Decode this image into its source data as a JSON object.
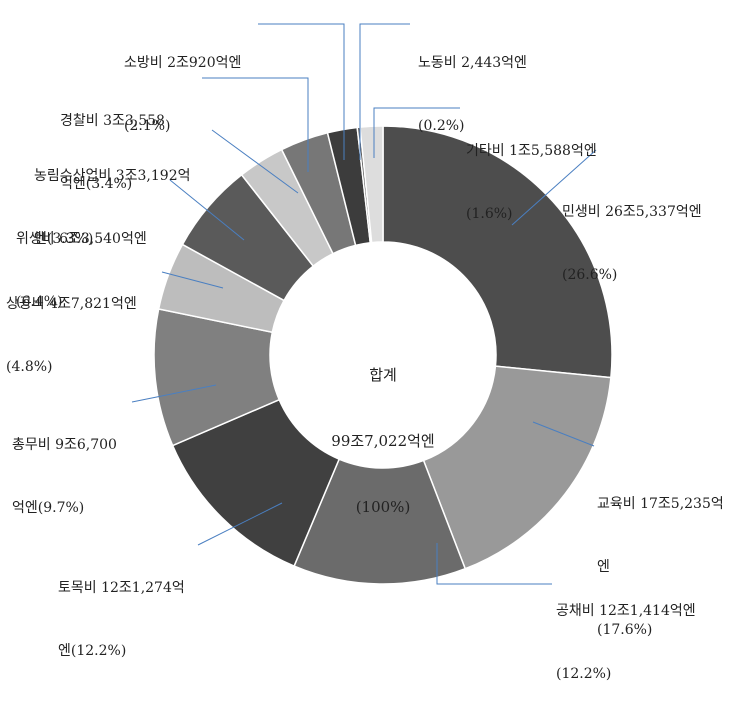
{
  "chart_data": {
    "type": "pie",
    "donut": true,
    "center_label": {
      "line1": "합계",
      "line2": "99조7,022억엔",
      "line3": "(100%)"
    },
    "slices": [
      {
        "name": "민생비",
        "amount": "26조5,337억엔",
        "percent": 26.6,
        "color": "#4d4d4d",
        "label_lines": [
          "민생비 26조5,337억엔",
          "(26.6%)"
        ]
      },
      {
        "name": "교육비",
        "amount": "17조5,235억엔",
        "percent": 17.6,
        "color": "#999999",
        "label_lines": [
          "교육비 17조5,235억",
          "엔",
          "(17.6%)"
        ]
      },
      {
        "name": "공채비",
        "amount": "12조1,414억엔",
        "percent": 12.2,
        "color": "#6b6b6b",
        "label_lines": [
          "공채비 12조1,414억엔",
          "(12.2%)"
        ]
      },
      {
        "name": "토목비",
        "amount": "12조1,274억엔",
        "percent": 12.2,
        "color": "#404040",
        "label_lines": [
          "토목비 12조1,274억",
          "엔(12.2%)"
        ]
      },
      {
        "name": "총무비",
        "amount": "9조6,700억엔",
        "percent": 9.7,
        "color": "#808080",
        "label_lines": [
          "총무비 9조6,700",
          "억엔(9.7%)"
        ]
      },
      {
        "name": "상공비",
        "amount": "4조7,821억엔",
        "percent": 4.8,
        "color": "#bdbdbd",
        "label_lines": [
          "상공비 4조7,821억엔",
          "(4.8%)"
        ]
      },
      {
        "name": "위생비",
        "amount": "6조3,540억엔",
        "percent": 6.4,
        "color": "#5a5a5a",
        "label_lines": [
          "위생비 6조3,540억엔",
          "(6.4%)"
        ]
      },
      {
        "name": "농림수산업비",
        "amount": "3조3,192억엔",
        "percent": 3.3,
        "color": "#c8c8c8",
        "label_lines": [
          "농림수산업비 3조3,192억",
          "엔(3.3%)"
        ]
      },
      {
        "name": "경찰비",
        "amount": "3조3,558억엔",
        "percent": 3.4,
        "color": "#777777",
        "label_lines": [
          "경찰비 3조3,558",
          "억엔(3.4%)"
        ]
      },
      {
        "name": "소방비",
        "amount": "2조920억엔",
        "percent": 2.1,
        "color": "#3c3c3c",
        "label_lines": [
          "소방비 2조920억엔",
          "(2.1%)"
        ]
      },
      {
        "name": "노동비",
        "amount": "2,443억엔",
        "percent": 0.2,
        "color": "#5e5e5e",
        "label_lines": [
          "노동비 2,443억엔",
          "(0.2%)"
        ]
      },
      {
        "name": "기타비",
        "amount": "1조5,588억엔",
        "percent": 1.6,
        "color": "#dddddd",
        "label_lines": [
          "기타비 1조5,588억엔",
          "(1.6%)"
        ]
      }
    ]
  }
}
